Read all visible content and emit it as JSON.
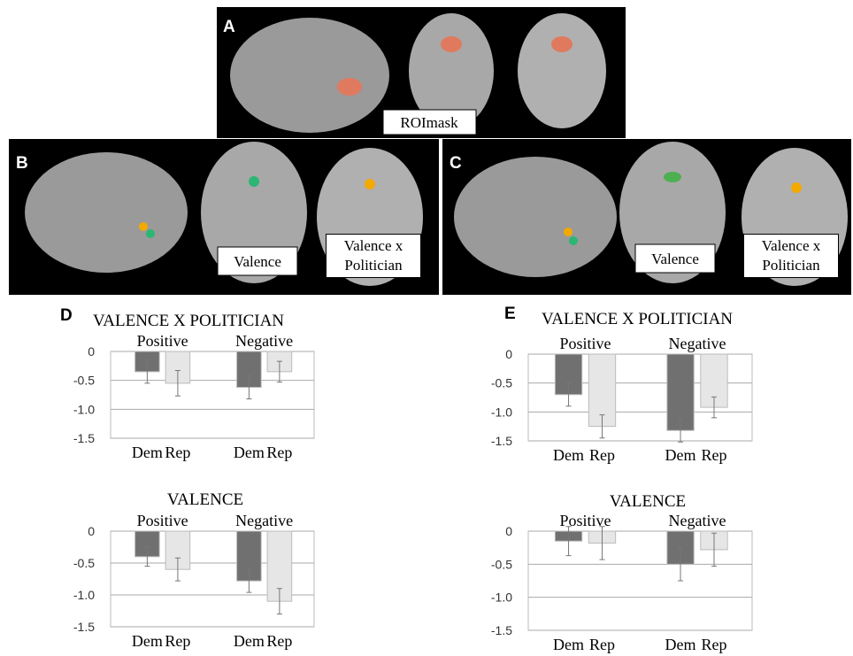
{
  "figure": {
    "panel_labels": [
      "A",
      "B",
      "C",
      "D",
      "E"
    ],
    "annotations": {
      "a": "ROImask",
      "b1": "Valence",
      "b2": "Valence x Politician",
      "c1": "Valence",
      "c2": "Valence x Politician"
    }
  },
  "chart_data": [
    {
      "type": "bar",
      "title": "VALENCE X POLITICIAN",
      "groups": [
        "Positive",
        "Negative"
      ],
      "categories": [
        "Dem",
        "Rep",
        "Dem",
        "Rep"
      ],
      "values": [
        -0.35,
        -0.55,
        -0.62,
        -0.35
      ],
      "errors": [
        0.2,
        0.22,
        0.2,
        0.18
      ],
      "colors": [
        "#707070",
        "#e6e6e6",
        "#707070",
        "#e6e6e6"
      ],
      "ylim": [
        -1.5,
        0
      ],
      "yticks": [
        0,
        -0.5,
        {
          "value": -1,
          "label": "-1.0"
        },
        -1.5
      ],
      "grid": true
    },
    {
      "type": "bar",
      "title": "VALENCE X POLITICIAN",
      "groups": [
        "Positive",
        "Negative"
      ],
      "categories": [
        "Dem",
        "Rep",
        "Dem",
        "Rep"
      ],
      "values": [
        -0.7,
        -1.25,
        -1.32,
        -0.92
      ],
      "errors": [
        0.2,
        0.2,
        0.2,
        0.18
      ],
      "colors": [
        "#707070",
        "#e6e6e6",
        "#707070",
        "#e6e6e6"
      ],
      "ylim": [
        -1.5,
        0
      ],
      "yticks": [
        0,
        -0.5,
        {
          "value": -1,
          "label": "-1.0"
        },
        -1.5
      ],
      "grid": true
    },
    {
      "type": "bar",
      "title": "VALENCE",
      "groups": [
        "Positive",
        "Negative"
      ],
      "categories": [
        "Dem",
        "Rep",
        "Dem",
        "Rep"
      ],
      "values": [
        -0.4,
        -0.6,
        -0.78,
        -1.1
      ],
      "errors": [
        0.15,
        0.18,
        0.18,
        0.2
      ],
      "colors": [
        "#707070",
        "#e6e6e6",
        "#707070",
        "#e6e6e6"
      ],
      "ylim": [
        -1.5,
        0
      ],
      "yticks": [
        0,
        -0.5,
        {
          "value": -1,
          "label": "-1.0"
        },
        -1.5
      ],
      "grid": true
    },
    {
      "type": "bar",
      "title": "VALENCE",
      "groups": [
        "Positive",
        "Negative"
      ],
      "categories": [
        "Dem",
        "Rep",
        "Dem",
        "Rep"
      ],
      "values": [
        -0.15,
        -0.18,
        -0.5,
        -0.28
      ],
      "errors": [
        0.22,
        0.25,
        0.25,
        0.25
      ],
      "colors": [
        "#707070",
        "#e6e6e6",
        "#707070",
        "#e6e6e6"
      ],
      "ylim": [
        -1.5,
        0
      ],
      "yticks": [
        0,
        -0.5,
        {
          "value": -1,
          "label": "-1.0"
        },
        -1.5
      ],
      "grid": true
    }
  ]
}
